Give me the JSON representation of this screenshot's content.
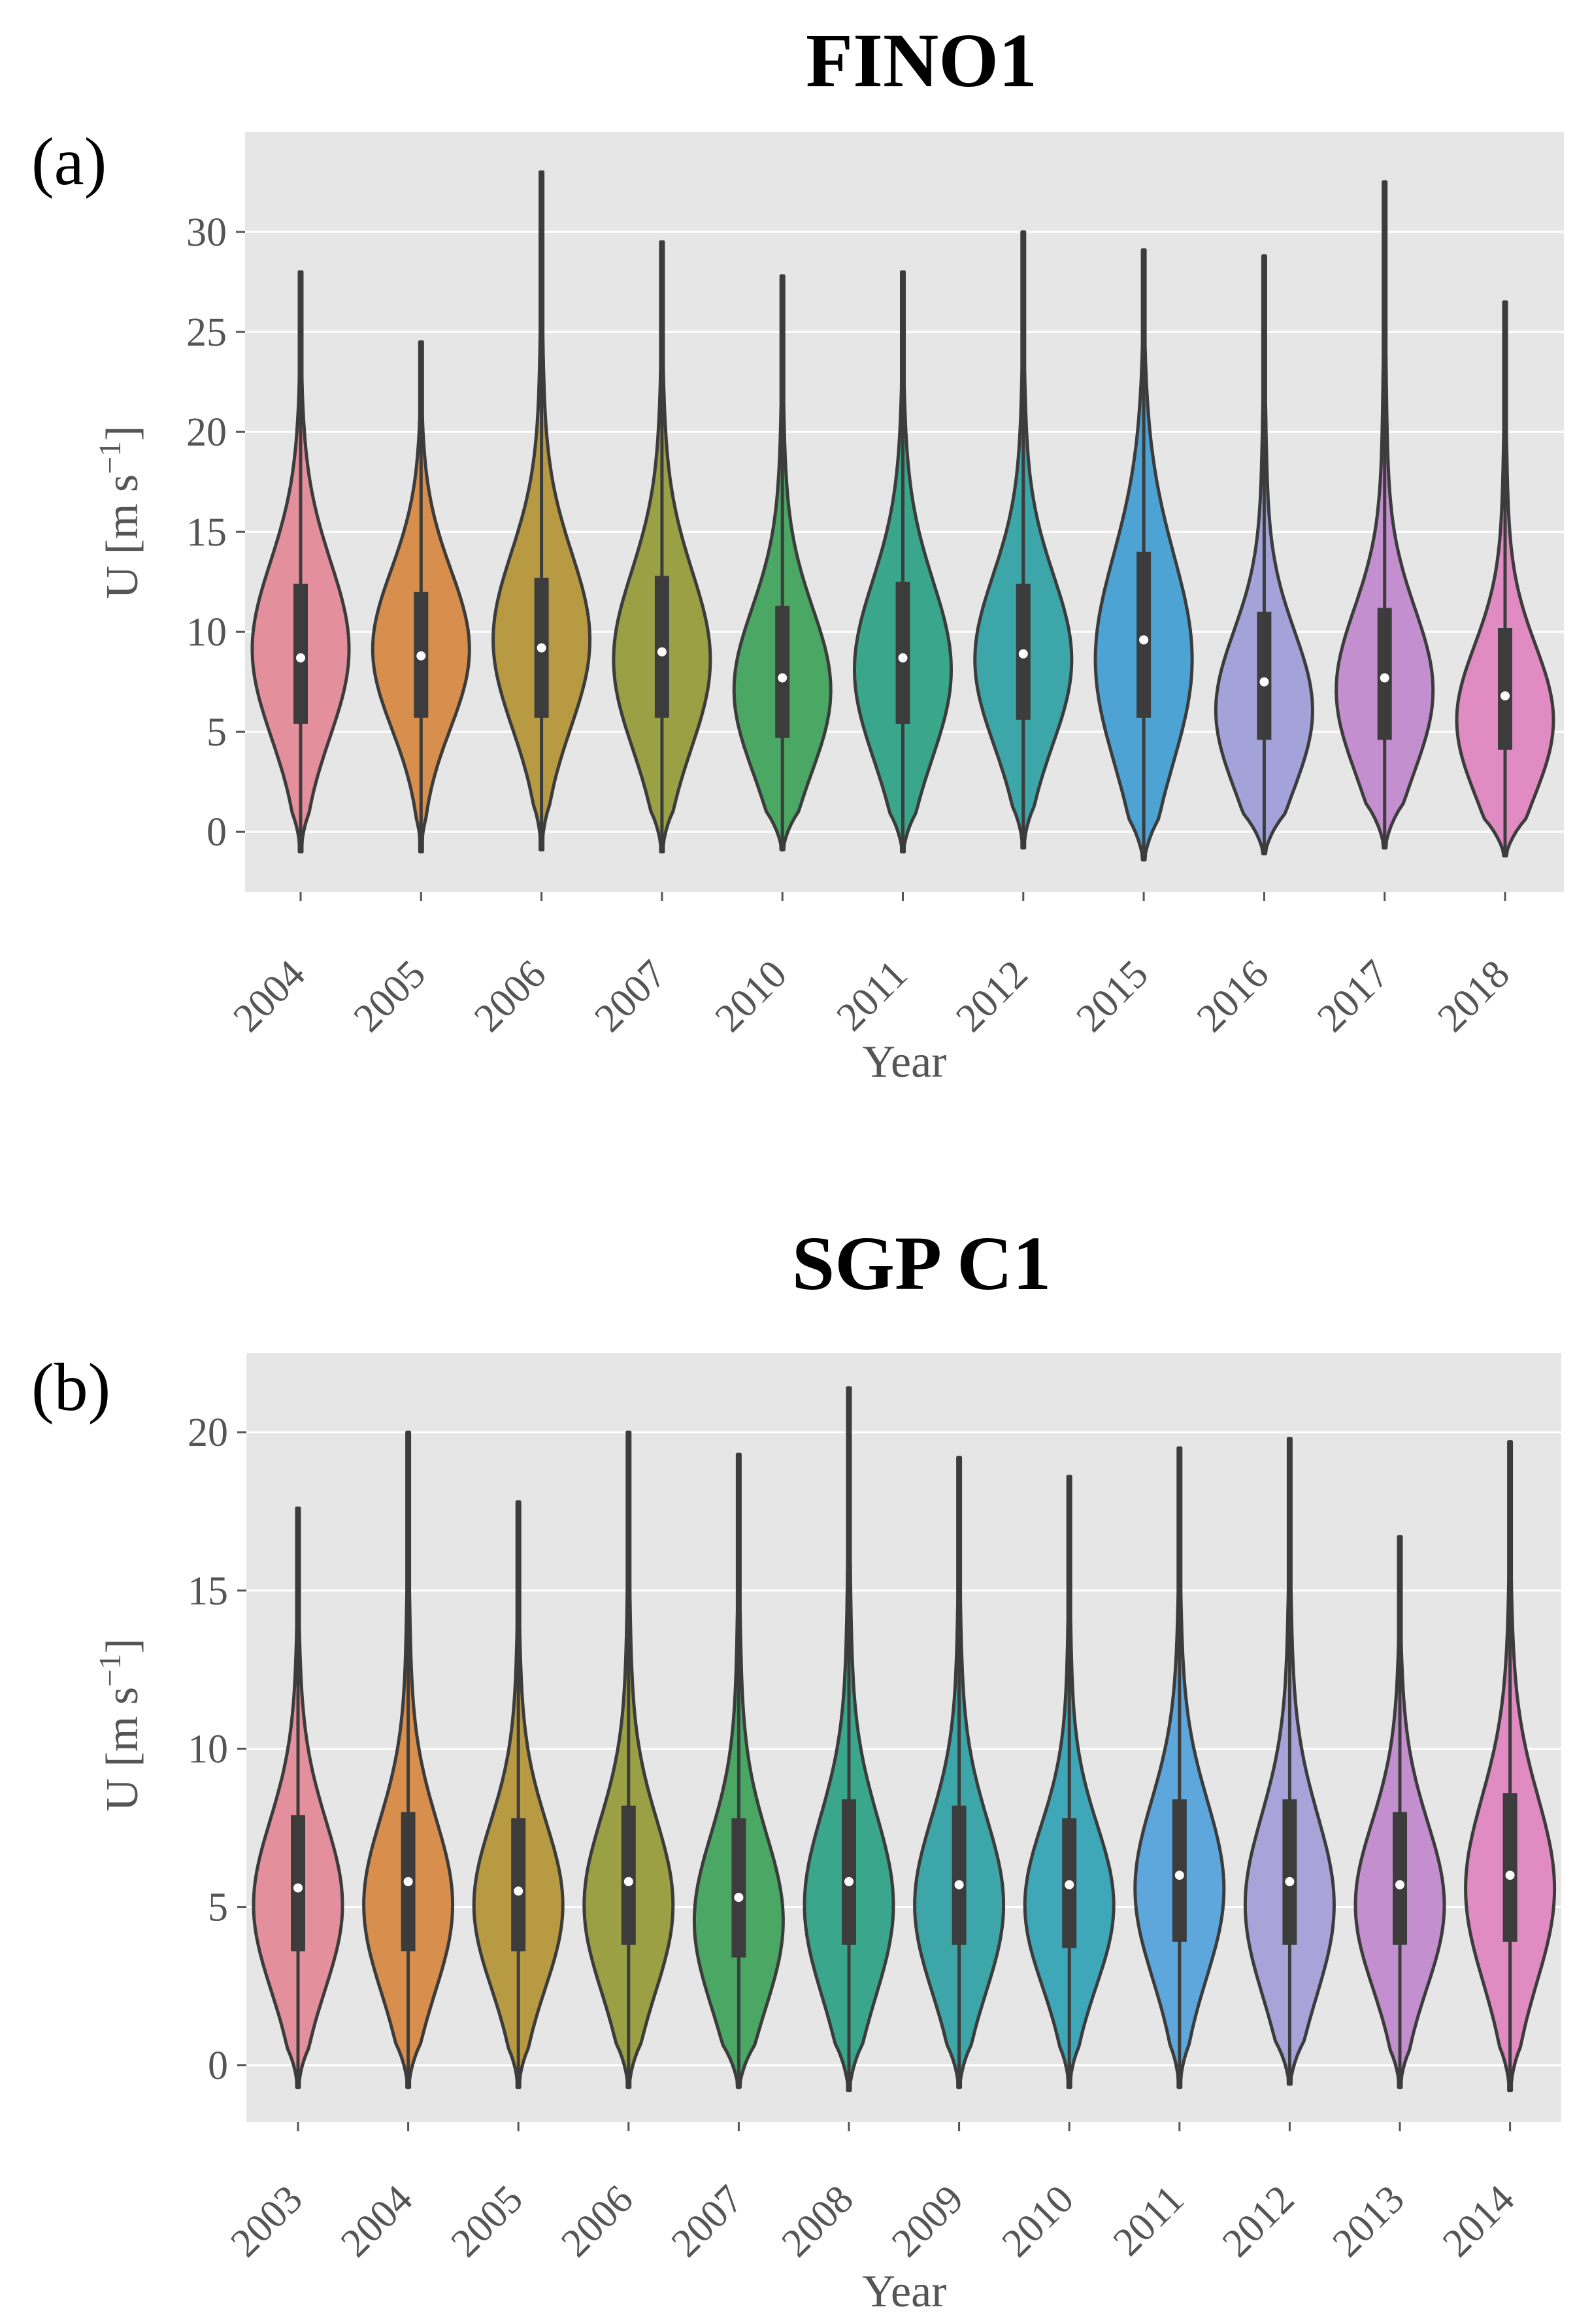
{
  "chart_data": [
    {
      "type": "violin",
      "title": "FINO1",
      "panel_label": "(a)",
      "xlabel": "Year",
      "ylabel": "U [m s⁻¹]",
      "ylabel_parts": {
        "main": "U [m s",
        "sup": "−1",
        "close": "]"
      },
      "ylim": [
        -3,
        35
      ],
      "yticks": [
        0,
        5,
        10,
        15,
        20,
        25,
        30
      ],
      "grid": true,
      "categories": [
        "2004",
        "2005",
        "2006",
        "2007",
        "2010",
        "2011",
        "2012",
        "2015",
        "2016",
        "2017",
        "2018"
      ],
      "series": [
        {
          "category": "2004",
          "min": -1.0,
          "max": 28.0,
          "q1": 5.4,
          "median": 8.7,
          "q3": 12.4,
          "color": "#e48f9c",
          "mode": 9.0
        },
        {
          "category": "2005",
          "min": -1.0,
          "max": 24.5,
          "q1": 5.7,
          "median": 8.8,
          "q3": 12.0,
          "color": "#d88f4d",
          "mode": 9.0
        },
        {
          "category": "2006",
          "min": -0.9,
          "max": 33.0,
          "q1": 5.7,
          "median": 9.2,
          "q3": 12.7,
          "color": "#b89a43",
          "mode": 9.5
        },
        {
          "category": "2007",
          "min": -1.0,
          "max": 29.5,
          "q1": 5.7,
          "median": 9.0,
          "q3": 12.8,
          "color": "#9aa043",
          "mode": 8.5
        },
        {
          "category": "2010",
          "min": -0.9,
          "max": 27.8,
          "q1": 4.7,
          "median": 7.7,
          "q3": 11.3,
          "color": "#4aa864",
          "mode": 7.0
        },
        {
          "category": "2011",
          "min": -1.0,
          "max": 28.0,
          "q1": 5.4,
          "median": 8.7,
          "q3": 12.5,
          "color": "#3aa78c",
          "mode": 8.0
        },
        {
          "category": "2012",
          "min": -0.8,
          "max": 30.0,
          "q1": 5.6,
          "median": 8.9,
          "q3": 12.4,
          "color": "#3da6a8",
          "mode": 8.5
        },
        {
          "category": "2015",
          "min": -1.4,
          "max": 29.1,
          "q1": 5.7,
          "median": 9.6,
          "q3": 14.0,
          "color": "#4ca3d4",
          "mode": 8.5
        },
        {
          "category": "2016",
          "min": -1.1,
          "max": 28.8,
          "q1": 4.6,
          "median": 7.5,
          "q3": 11.0,
          "color": "#a3a3da",
          "mode": 6.0
        },
        {
          "category": "2017",
          "min": -0.8,
          "max": 32.5,
          "q1": 4.6,
          "median": 7.7,
          "q3": 11.2,
          "color": "#c48fce",
          "mode": 7.0
        },
        {
          "category": "2018",
          "min": -1.2,
          "max": 26.5,
          "q1": 4.1,
          "median": 6.8,
          "q3": 10.2,
          "color": "#e08bc2",
          "mode": 5.5
        }
      ]
    },
    {
      "type": "violin",
      "title": "SGP C1",
      "panel_label": "(b)",
      "xlabel": "Year",
      "ylabel": "U [m s⁻¹]",
      "ylabel_parts": {
        "main": "U [m s",
        "sup": "−1",
        "close": "]"
      },
      "ylim": [
        -1.8,
        22.5
      ],
      "yticks": [
        0,
        5,
        10,
        15,
        20
      ],
      "grid": true,
      "categories": [
        "2003",
        "2004",
        "2005",
        "2006",
        "2007",
        "2008",
        "2009",
        "2010",
        "2011",
        "2012",
        "2013",
        "2014"
      ],
      "series": [
        {
          "category": "2003",
          "min": -0.7,
          "max": 17.6,
          "q1": 3.6,
          "median": 5.6,
          "q3": 7.9,
          "color": "#e48f9c",
          "mode": 5.0
        },
        {
          "category": "2004",
          "min": -0.7,
          "max": 20.0,
          "q1": 3.6,
          "median": 5.8,
          "q3": 8.0,
          "color": "#d88f4d",
          "mode": 5.0
        },
        {
          "category": "2005",
          "min": -0.7,
          "max": 17.8,
          "q1": 3.6,
          "median": 5.5,
          "q3": 7.8,
          "color": "#b89a43",
          "mode": 5.0
        },
        {
          "category": "2006",
          "min": -0.7,
          "max": 20.0,
          "q1": 3.8,
          "median": 5.8,
          "q3": 8.2,
          "color": "#9aa043",
          "mode": 5.0
        },
        {
          "category": "2007",
          "min": -0.7,
          "max": 19.3,
          "q1": 3.4,
          "median": 5.3,
          "q3": 7.8,
          "color": "#4aa864",
          "mode": 4.5
        },
        {
          "category": "2008",
          "min": -0.8,
          "max": 21.4,
          "q1": 3.8,
          "median": 5.8,
          "q3": 8.4,
          "color": "#3aa78c",
          "mode": 5.0
        },
        {
          "category": "2009",
          "min": -0.7,
          "max": 19.2,
          "q1": 3.8,
          "median": 5.7,
          "q3": 8.2,
          "color": "#3da6a8",
          "mode": 5.0
        },
        {
          "category": "2010",
          "min": -0.7,
          "max": 18.6,
          "q1": 3.7,
          "median": 5.7,
          "q3": 7.8,
          "color": "#3ea8b8",
          "mode": 5.0
        },
        {
          "category": "2011",
          "min": -0.7,
          "max": 19.5,
          "q1": 3.9,
          "median": 6.0,
          "q3": 8.4,
          "color": "#5ea7dd",
          "mode": 5.5
        },
        {
          "category": "2012",
          "min": -0.6,
          "max": 19.8,
          "q1": 3.8,
          "median": 5.8,
          "q3": 8.4,
          "color": "#a9a3da",
          "mode": 5.0
        },
        {
          "category": "2013",
          "min": -0.7,
          "max": 16.7,
          "q1": 3.8,
          "median": 5.7,
          "q3": 8.0,
          "color": "#c48fce",
          "mode": 5.0
        },
        {
          "category": "2014",
          "min": -0.8,
          "max": 19.7,
          "q1": 3.9,
          "median": 6.0,
          "q3": 8.6,
          "color": "#e08bc2",
          "mode": 5.5
        }
      ]
    }
  ]
}
